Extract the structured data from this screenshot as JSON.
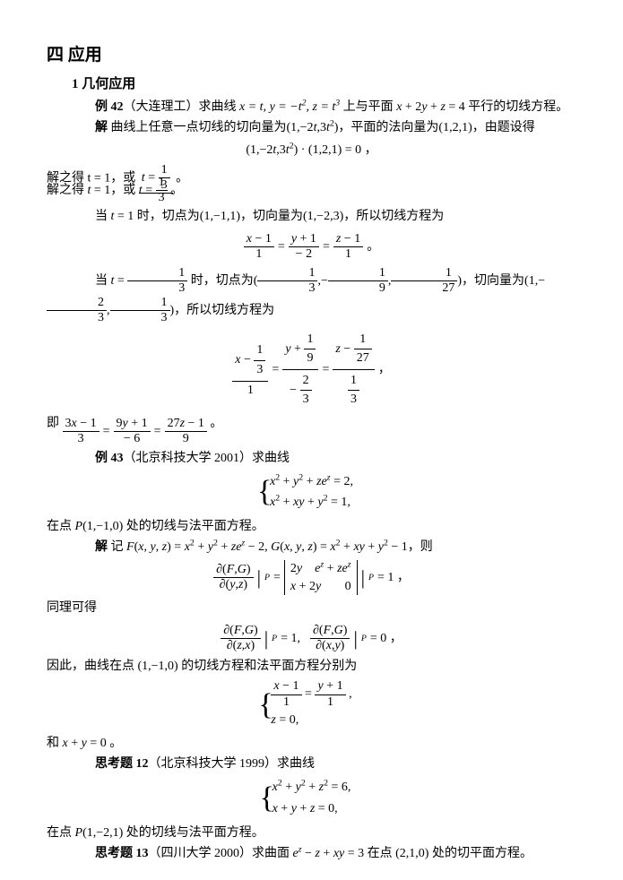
{
  "heading": "四 应用",
  "subheading": "1 几何应用",
  "ex42": {
    "label": "例 42",
    "source": "（大连理工）求曲线 ",
    "curve": "x = t, y = −t², z = t³",
    "tail": " 上与平面 x + 2y + z = 4 平行的切线方程。",
    "sol_label": "解",
    "sol_text": " 曲线上任意一点切线的切向量为(1,−2t,3t²)，平面的法向量为(1,2,1)，由题设得",
    "eq1": "(1,−2t,3t²) · (1,2,1) = 0 ，",
    "solve1a": "解之得 t = 1，或 ",
    "solve1b": " 。",
    "case1a": "当 t = 1 时，切点为(1,−1,1)，切向量为(1,−2,3)，所以切线方程为",
    "case2a": "当 ",
    "case2a_mid": " 时，切点为",
    "case2a_tail": "，切向量为",
    "case2a_end": "，所以切线方程为",
    "ji": "即 ",
    "ji_end": " 。"
  },
  "ex43": {
    "label": "例 43",
    "source": "（北京科技大学 2001）求曲线",
    "sys1": "x² + y² + ze^z = 2,",
    "sys2": "x² + xy + y² = 1,",
    "at_point": "在点 P(1,−1,0) 处的切线与法平面方程。",
    "sol_label": "解",
    "sol_text": " 记 F(x, y, z) = x² + y² + ze^z − 2, G(x, y, z) = x² + xy + y² − 1，则",
    "tongli": "同理可得",
    "yinci": "因此，曲线在点 (1,−1,0) 的切线方程和法平面方程分别为",
    "res_sys1_a": "x − 1",
    "res_sys1_b": "y + 1",
    "res_sys2": "z = 0,",
    "he": "和 x + y = 0 。"
  },
  "p12": {
    "label": "思考题 12",
    "source": "（北京科技大学 1999）求曲线",
    "sys1": "x² + y² + z² = 6,",
    "sys2": "x + y + z = 0,",
    "at_point": "在点 P(1,−2,1) 处的切线与法平面方程。"
  },
  "p13": {
    "label": "思考题 13",
    "source": "（四川大学 2000）求曲面 e^z − z + xy = 3 在点 (2,1,0) 处的切平面方程。"
  }
}
